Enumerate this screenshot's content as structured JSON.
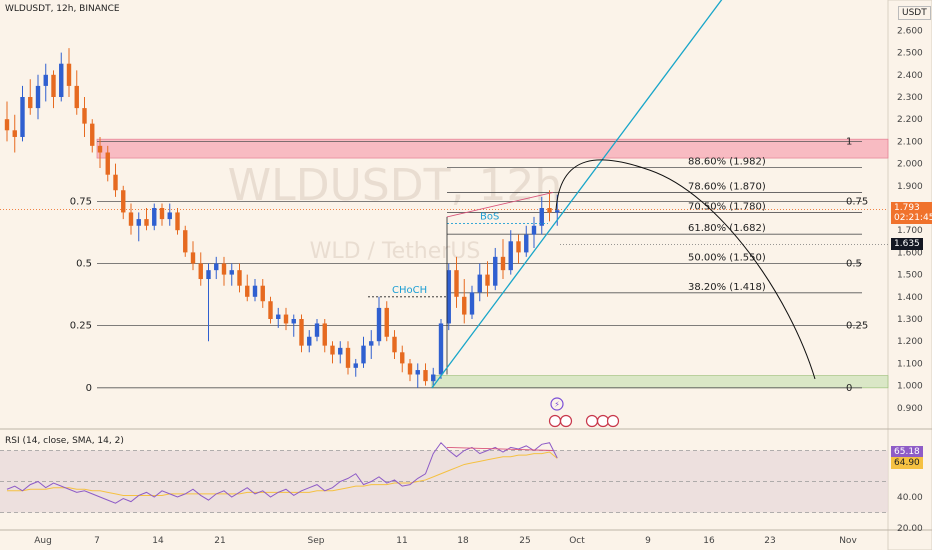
{
  "header": {
    "symbol": "WLDUSDT, 12h, BINANCE"
  },
  "watermark": {
    "main": "WLDUSDT, 12h",
    "sub": "WLD / TetherUS"
  },
  "price_axis": {
    "currency": "USDT",
    "ticks": [
      "2.600",
      "2.500",
      "2.400",
      "2.300",
      "2.200",
      "2.100",
      "2.000",
      "1.900",
      "1.800",
      "1.700",
      "1.600",
      "1.500",
      "1.400",
      "1.300",
      "1.200",
      "1.100",
      "1.000",
      "0.900"
    ],
    "current_price": "1.793",
    "countdown": "02:21:45",
    "line_price": "1.635",
    "colors": {
      "current": "#f0722c",
      "line": "#131722"
    }
  },
  "time_axis": {
    "labels": [
      "Aug",
      "7",
      "14",
      "21",
      "Sep",
      "11",
      "18",
      "25",
      "Oct",
      "9",
      "16",
      "23",
      "Nov"
    ]
  },
  "fib_levels": [
    {
      "ratio": 1.0,
      "price": 2.1,
      "left_label": "",
      "right_label": "1",
      "text": ""
    },
    {
      "ratio": 0.886,
      "price": 1.982,
      "left_label": "",
      "right_label": "",
      "text": "88.60% (1.982)"
    },
    {
      "ratio": 0.786,
      "price": 1.87,
      "left_label": "",
      "right_label": "",
      "text": "78.60% (1.870)"
    },
    {
      "ratio": 0.75,
      "price": 1.83,
      "left_label": "0.75",
      "right_label": "0.75",
      "text": ""
    },
    {
      "ratio": 0.705,
      "price": 1.78,
      "left_label": "",
      "right_label": "",
      "text": "70.50% (1.780)"
    },
    {
      "ratio": 0.618,
      "price": 1.682,
      "left_label": "",
      "right_label": "",
      "text": "61.80% (1.682)"
    },
    {
      "ratio": 0.5,
      "price": 1.55,
      "left_label": "0.5",
      "right_label": "0.5",
      "text": "50.00% (1.550)"
    },
    {
      "ratio": 0.382,
      "price": 1.418,
      "left_label": "",
      "right_label": "",
      "text": "38.20% (1.418)"
    },
    {
      "ratio": 0.25,
      "price": 1.27,
      "left_label": "0.25",
      "right_label": "0.25",
      "text": ""
    },
    {
      "ratio": 0.0,
      "price": 0.99,
      "left_label": "0",
      "right_label": "0",
      "text": ""
    }
  ],
  "zones": [
    {
      "name": "supply",
      "from": 2.025,
      "to": 2.11,
      "color": "#f7a8b4"
    },
    {
      "name": "demand",
      "from": 0.99,
      "to": 1.045,
      "color": "#cfe3b9"
    }
  ],
  "annotations": {
    "choch": "CHoCH",
    "bos": "BoS"
  },
  "rsi": {
    "title": "RSI (14, close, SMA, 14, 2)",
    "value": "65.18",
    "sma_value": "64.90",
    "ticks": [
      "60.00",
      "40.00",
      "20.00"
    ],
    "colors": {
      "rsi": "#8e5cc7",
      "sma": "#f5c142",
      "band": "#eadbdb"
    }
  },
  "chart_data": {
    "type": "candlestick",
    "title": "WLDUSDT, 12h, BINANCE",
    "ylim": [
      0.83,
      2.68
    ],
    "candles": [
      [
        2.2,
        2.28,
        2.1,
        2.15
      ],
      [
        2.15,
        2.22,
        2.05,
        2.12
      ],
      [
        2.12,
        2.35,
        2.1,
        2.3
      ],
      [
        2.3,
        2.38,
        2.22,
        2.25
      ],
      [
        2.25,
        2.4,
        2.2,
        2.35
      ],
      [
        2.35,
        2.45,
        2.28,
        2.4
      ],
      [
        2.4,
        2.42,
        2.25,
        2.3
      ],
      [
        2.3,
        2.5,
        2.28,
        2.45
      ],
      [
        2.45,
        2.52,
        2.3,
        2.35
      ],
      [
        2.35,
        2.42,
        2.22,
        2.25
      ],
      [
        2.25,
        2.3,
        2.12,
        2.18
      ],
      [
        2.18,
        2.2,
        2.05,
        2.08
      ],
      [
        2.08,
        2.12,
        1.98,
        2.05
      ],
      [
        2.05,
        2.08,
        1.92,
        1.95
      ],
      [
        1.95,
        2.0,
        1.85,
        1.88
      ],
      [
        1.88,
        1.9,
        1.75,
        1.78
      ],
      [
        1.78,
        1.82,
        1.68,
        1.72
      ],
      [
        1.72,
        1.78,
        1.65,
        1.75
      ],
      [
        1.75,
        1.8,
        1.7,
        1.72
      ],
      [
        1.72,
        1.82,
        1.7,
        1.8
      ],
      [
        1.8,
        1.82,
        1.72,
        1.75
      ],
      [
        1.75,
        1.82,
        1.72,
        1.78
      ],
      [
        1.78,
        1.8,
        1.68,
        1.7
      ],
      [
        1.7,
        1.72,
        1.58,
        1.6
      ],
      [
        1.6,
        1.65,
        1.52,
        1.55
      ],
      [
        1.55,
        1.6,
        1.45,
        1.48
      ],
      [
        1.48,
        1.55,
        1.2,
        1.52
      ],
      [
        1.52,
        1.58,
        1.48,
        1.55
      ],
      [
        1.55,
        1.58,
        1.45,
        1.5
      ],
      [
        1.5,
        1.55,
        1.45,
        1.52
      ],
      [
        1.52,
        1.55,
        1.42,
        1.45
      ],
      [
        1.45,
        1.5,
        1.38,
        1.4
      ],
      [
        1.4,
        1.48,
        1.38,
        1.45
      ],
      [
        1.45,
        1.48,
        1.35,
        1.38
      ],
      [
        1.38,
        1.4,
        1.28,
        1.3
      ],
      [
        1.3,
        1.35,
        1.26,
        1.32
      ],
      [
        1.32,
        1.35,
        1.25,
        1.28
      ],
      [
        1.28,
        1.32,
        1.22,
        1.3
      ],
      [
        1.3,
        1.32,
        1.15,
        1.18
      ],
      [
        1.18,
        1.25,
        1.15,
        1.22
      ],
      [
        1.22,
        1.3,
        1.2,
        1.28
      ],
      [
        1.28,
        1.3,
        1.15,
        1.18
      ],
      [
        1.18,
        1.2,
        1.1,
        1.14
      ],
      [
        1.14,
        1.2,
        1.1,
        1.17
      ],
      [
        1.17,
        1.2,
        1.05,
        1.08
      ],
      [
        1.08,
        1.12,
        1.04,
        1.1
      ],
      [
        1.1,
        1.22,
        1.08,
        1.18
      ],
      [
        1.18,
        1.25,
        1.12,
        1.2
      ],
      [
        1.2,
        1.4,
        1.18,
        1.35
      ],
      [
        1.35,
        1.38,
        1.2,
        1.22
      ],
      [
        1.22,
        1.25,
        1.12,
        1.15
      ],
      [
        1.15,
        1.18,
        1.06,
        1.1
      ],
      [
        1.1,
        1.12,
        1.02,
        1.05
      ],
      [
        1.05,
        1.1,
        0.99,
        1.07
      ],
      [
        1.07,
        1.1,
        1.0,
        1.02
      ],
      [
        1.02,
        1.08,
        1.0,
        1.05
      ],
      [
        1.05,
        1.3,
        1.03,
        1.28
      ],
      [
        1.28,
        1.55,
        1.25,
        1.52
      ],
      [
        1.52,
        1.58,
        1.35,
        1.4
      ],
      [
        1.4,
        1.48,
        1.28,
        1.32
      ],
      [
        1.32,
        1.45,
        1.3,
        1.42
      ],
      [
        1.42,
        1.55,
        1.38,
        1.5
      ],
      [
        1.5,
        1.56,
        1.4,
        1.45
      ],
      [
        1.45,
        1.62,
        1.43,
        1.58
      ],
      [
        1.58,
        1.66,
        1.48,
        1.52
      ],
      [
        1.52,
        1.7,
        1.5,
        1.65
      ],
      [
        1.65,
        1.68,
        1.55,
        1.6
      ],
      [
        1.6,
        1.72,
        1.58,
        1.68
      ],
      [
        1.68,
        1.76,
        1.62,
        1.72
      ],
      [
        1.72,
        1.85,
        1.68,
        1.8
      ],
      [
        1.8,
        1.88,
        1.74,
        1.78
      ],
      [
        1.78,
        1.86,
        1.72,
        1.79
      ]
    ],
    "rsi_values": [
      45,
      47,
      44,
      48,
      50,
      46,
      49,
      47,
      45,
      43,
      44,
      42,
      40,
      38,
      36,
      39,
      37,
      41,
      43,
      40,
      44,
      42,
      40,
      42,
      45,
      41,
      38,
      42,
      44,
      40,
      43,
      46,
      42,
      44,
      40,
      43,
      45,
      41,
      44,
      46,
      48,
      44,
      46,
      50,
      52,
      55,
      48,
      50,
      53,
      49,
      51,
      47,
      48,
      52,
      55,
      68,
      75,
      70,
      66,
      70,
      72,
      68,
      70,
      72,
      69,
      72,
      71,
      73,
      70,
      74,
      75,
      65.18
    ],
    "rsi_sma": [
      44,
      44,
      44,
      45,
      45,
      45,
      46,
      46,
      46,
      45,
      45,
      44,
      44,
      43,
      42,
      41,
      41,
      41,
      41,
      41,
      41,
      42,
      42,
      42,
      42,
      42,
      42,
      42,
      42,
      42,
      42,
      43,
      43,
      43,
      43,
      43,
      43,
      43,
      43,
      43,
      44,
      44,
      44,
      45,
      46,
      47,
      47,
      48,
      48,
      48,
      49,
      49,
      49,
      50,
      51,
      53,
      55,
      57,
      59,
      61,
      62,
      63,
      64,
      65,
      66,
      66,
      67,
      67,
      68,
      68,
      69,
      64.9
    ]
  }
}
